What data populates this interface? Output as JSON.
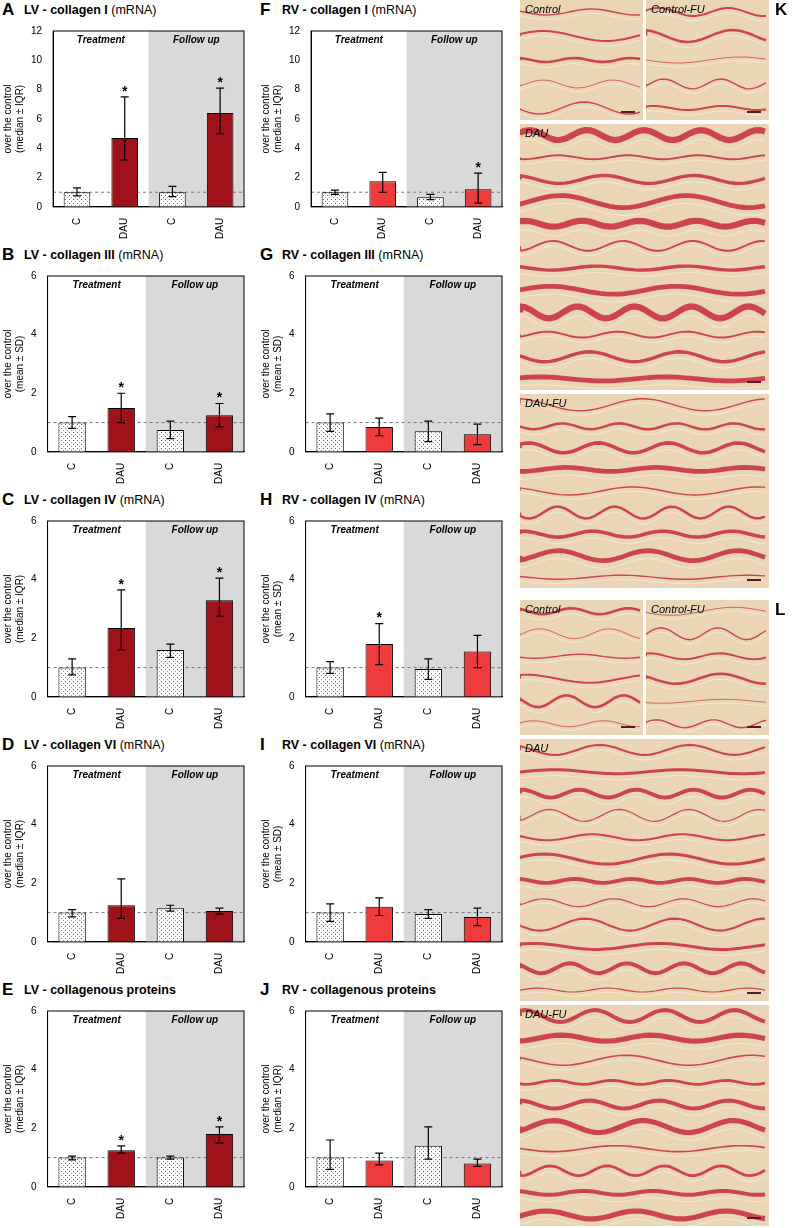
{
  "chart_data": [
    {
      "type": "bar",
      "panel": "A",
      "title": "LV - collagen I",
      "subtitle": "(mRNA)",
      "ylabel": [
        "over the control",
        "(median ± IQR)"
      ],
      "categories": [
        "C",
        "DAU",
        "C",
        "DAU"
      ],
      "groups": [
        "Treatment",
        "Follow up"
      ],
      "values": [
        1.0,
        4.7,
        1.0,
        6.4
      ],
      "error_low": [
        0.75,
        3.2,
        0.7,
        5.0
      ],
      "error_high": [
        1.3,
        7.5,
        1.4,
        8.1
      ],
      "significance": [
        null,
        "*",
        null,
        "*"
      ],
      "reference_line": 1,
      "colors": [
        "#ffffff",
        "#a0121a",
        "#ffffff",
        "#a0121a"
      ],
      "ylim": [
        0,
        12
      ],
      "yticks": [
        0,
        2,
        4,
        6,
        8,
        10,
        12
      ],
      "grid": false
    },
    {
      "type": "bar",
      "panel": "B",
      "title": "LV - collagen III",
      "subtitle": "(mRNA)",
      "ylabel": [
        "over the control",
        "(mean ± SD)"
      ],
      "categories": [
        "C",
        "DAU",
        "C",
        "DAU"
      ],
      "groups": [
        "Treatment",
        "Follow up"
      ],
      "values": [
        1.0,
        1.5,
        0.75,
        1.25
      ],
      "error_low": [
        0.8,
        1.0,
        0.45,
        0.85
      ],
      "error_high": [
        1.2,
        2.0,
        1.05,
        1.65
      ],
      "significance": [
        null,
        "*",
        null,
        "*"
      ],
      "reference_line": 1,
      "colors": [
        "#ffffff",
        "#a0121a",
        "#ffffff",
        "#a0121a"
      ],
      "ylim": [
        0,
        6
      ],
      "yticks": [
        0,
        2,
        4,
        6
      ],
      "grid": false
    },
    {
      "type": "bar",
      "panel": "C",
      "title": "LV - collagen IV",
      "subtitle": "(mRNA)",
      "ylabel": [
        "over the control",
        "(median ± IQR)"
      ],
      "categories": [
        "C",
        "DAU",
        "C",
        "DAU"
      ],
      "groups": [
        "Treatment",
        "Follow up"
      ],
      "values": [
        1.0,
        2.35,
        1.6,
        3.3
      ],
      "error_low": [
        0.75,
        1.6,
        1.35,
        2.75
      ],
      "error_high": [
        1.3,
        3.65,
        1.8,
        4.05
      ],
      "significance": [
        null,
        "*",
        null,
        "*"
      ],
      "reference_line": 1,
      "colors": [
        "#ffffff",
        "#a0121a",
        "#ffffff",
        "#a0121a"
      ],
      "ylim": [
        0,
        6
      ],
      "yticks": [
        0,
        2,
        4,
        6
      ],
      "grid": false
    },
    {
      "type": "bar",
      "panel": "D",
      "title": "LV - collagen VI",
      "subtitle": "(mRNA)",
      "ylabel": [
        "over the control",
        "(median ± IQR)"
      ],
      "categories": [
        "C",
        "DAU",
        "C",
        "DAU"
      ],
      "groups": [
        "Treatment",
        "Follow up"
      ],
      "values": [
        1.0,
        1.25,
        1.15,
        1.05
      ],
      "error_low": [
        0.85,
        0.8,
        1.05,
        0.95
      ],
      "error_high": [
        1.1,
        2.15,
        1.25,
        1.15
      ],
      "significance": [
        null,
        null,
        null,
        null
      ],
      "reference_line": 1,
      "colors": [
        "#ffffff",
        "#a0121a",
        "#ffffff",
        "#a0121a"
      ],
      "ylim": [
        0,
        6
      ],
      "yticks": [
        0,
        2,
        4,
        6
      ],
      "grid": false
    },
    {
      "type": "bar",
      "panel": "E",
      "title": "LV - collagenous proteins",
      "subtitle": null,
      "ylabel": [
        "over the control",
        "(median ± IQR)"
      ],
      "categories": [
        "C",
        "DAU",
        "C",
        "DAU"
      ],
      "groups": [
        "Treatment",
        "Follow up"
      ],
      "values": [
        1.0,
        1.25,
        1.0,
        1.8
      ],
      "error_low": [
        0.92,
        1.15,
        0.95,
        1.5
      ],
      "error_high": [
        1.05,
        1.4,
        1.05,
        2.05
      ],
      "significance": [
        null,
        "*",
        null,
        "*"
      ],
      "reference_line": 1,
      "colors": [
        "#ffffff",
        "#a0121a",
        "#ffffff",
        "#a0121a"
      ],
      "ylim": [
        0,
        6
      ],
      "yticks": [
        0,
        2,
        4,
        6
      ],
      "grid": false
    },
    {
      "type": "bar",
      "panel": "F",
      "title": "RV - collagen I",
      "subtitle": "(mRNA)",
      "ylabel": [
        "over the control",
        "(median ± IQR)"
      ],
      "categories": [
        "C",
        "DAU",
        "C",
        "DAU"
      ],
      "groups": [
        "Treatment",
        "Follow up"
      ],
      "values": [
        1.0,
        1.75,
        0.65,
        1.2
      ],
      "error_low": [
        0.85,
        1.0,
        0.5,
        0.25
      ],
      "error_high": [
        1.15,
        2.35,
        0.85,
        2.3
      ],
      "significance": [
        null,
        null,
        null,
        "*"
      ],
      "reference_line": 1,
      "colors": [
        "#ffffff",
        "#ee3b3b",
        "#ffffff",
        "#ee3b3b"
      ],
      "ylim": [
        0,
        12
      ],
      "yticks": [
        0,
        2,
        4,
        6,
        8,
        10,
        12
      ],
      "grid": false
    },
    {
      "type": "bar",
      "panel": "G",
      "title": "RV - collagen III",
      "subtitle": "(mRNA)",
      "ylabel": [
        "over the control",
        "(mean ± SD)"
      ],
      "categories": [
        "C",
        "DAU",
        "C",
        "DAU"
      ],
      "groups": [
        "Treatment",
        "Follow up"
      ],
      "values": [
        1.0,
        0.85,
        0.7,
        0.6
      ],
      "error_low": [
        0.7,
        0.55,
        0.35,
        0.25
      ],
      "error_high": [
        1.3,
        1.15,
        1.05,
        0.95
      ],
      "significance": [
        null,
        null,
        null,
        null
      ],
      "reference_line": 1,
      "colors": [
        "#ffffff",
        "#ee3b3b",
        "#ffffff",
        "#ee3b3b"
      ],
      "ylim": [
        0,
        6
      ],
      "yticks": [
        0,
        2,
        4,
        6
      ],
      "grid": false
    },
    {
      "type": "bar",
      "panel": "H",
      "title": "RV - collagen IV",
      "subtitle": "(mRNA)",
      "ylabel": [
        "over the control",
        "(mean ± SD)"
      ],
      "categories": [
        "C",
        "DAU",
        "C",
        "DAU"
      ],
      "groups": [
        "Treatment",
        "Follow up"
      ],
      "values": [
        1.0,
        1.8,
        0.95,
        1.55
      ],
      "error_low": [
        0.8,
        1.1,
        0.6,
        1.0
      ],
      "error_high": [
        1.2,
        2.5,
        1.3,
        2.1
      ],
      "significance": [
        null,
        "*",
        null,
        null
      ],
      "reference_line": 1,
      "colors": [
        "#ffffff",
        "#ee3b3b",
        "#ffffff",
        "#ee3b3b"
      ],
      "ylim": [
        0,
        6
      ],
      "yticks": [
        0,
        2,
        4,
        6
      ],
      "grid": false
    },
    {
      "type": "bar",
      "panel": "I",
      "title": "RV - collagen VI",
      "subtitle": "(mRNA)",
      "ylabel": [
        "over the control",
        "(mean ± SD)"
      ],
      "categories": [
        "C",
        "DAU",
        "C",
        "DAU"
      ],
      "groups": [
        "Treatment",
        "Follow up"
      ],
      "values": [
        1.0,
        1.2,
        0.95,
        0.85
      ],
      "error_low": [
        0.7,
        0.9,
        0.8,
        0.55
      ],
      "error_high": [
        1.3,
        1.5,
        1.1,
        1.15
      ],
      "significance": [
        null,
        null,
        null,
        null
      ],
      "reference_line": 1,
      "colors": [
        "#ffffff",
        "#ee3b3b",
        "#ffffff",
        "#ee3b3b"
      ],
      "ylim": [
        0,
        6
      ],
      "yticks": [
        0,
        2,
        4,
        6
      ],
      "grid": false
    },
    {
      "type": "bar",
      "panel": "J",
      "title": "RV - collagenous proteins",
      "subtitle": null,
      "ylabel": [
        "over the control",
        "(median ± IQR)"
      ],
      "categories": [
        "C",
        "DAU",
        "C",
        "DAU"
      ],
      "groups": [
        "Treatment",
        "Follow up"
      ],
      "values": [
        1.0,
        0.9,
        1.4,
        0.8
      ],
      "error_low": [
        0.6,
        0.75,
        0.95,
        0.7
      ],
      "error_high": [
        1.6,
        1.15,
        2.05,
        0.95
      ],
      "significance": [
        null,
        null,
        null,
        null
      ],
      "reference_line": 1,
      "colors": [
        "#ffffff",
        "#ee3b3b",
        "#ffffff",
        "#ee3b3b"
      ],
      "ylim": [
        0,
        6
      ],
      "yticks": [
        0,
        2,
        4,
        6
      ],
      "grid": false
    }
  ],
  "images": [
    {
      "panel": "K",
      "labels": [
        "Control",
        "Control-FU",
        "DAU",
        "DAU-FU"
      ]
    },
    {
      "panel": "L",
      "labels": [
        "Control",
        "Control-FU",
        "DAU",
        "DAU-FU"
      ]
    }
  ]
}
